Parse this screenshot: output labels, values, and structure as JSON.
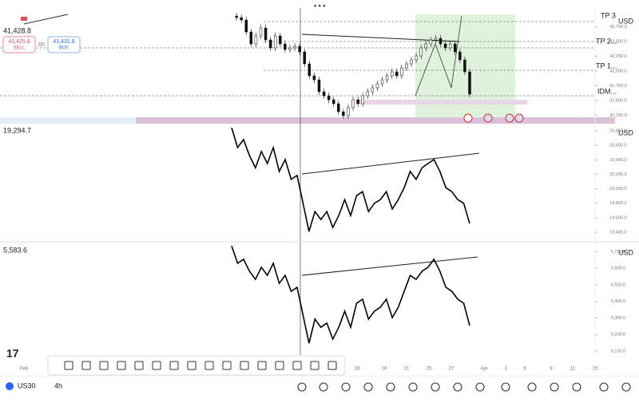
{
  "header": {
    "price": "41,428.8",
    "sell_price": "41,425.8",
    "sell": "SELL",
    "spread": "60",
    "buy_price": "41,431.8",
    "buy": "BUY"
  },
  "levels": [
    "TP 3",
    "TP 2...",
    "TP 1...",
    "IDM..."
  ],
  "panes": [
    {
      "type": "candlestick",
      "currency": "USD",
      "ylim": [
        41200,
        43000
      ],
      "yticks": [
        {
          "value": 42750,
          "label": "42,750.0"
        },
        {
          "value": 42500,
          "label": "42,500.0"
        },
        {
          "value": 42250,
          "label": "42,250.0"
        },
        {
          "value": 42000,
          "label": "42,000.0"
        },
        {
          "value": 41750,
          "label": "41,750.0"
        },
        {
          "value": 41500,
          "label": "41,500.0"
        },
        {
          "value": 41250,
          "label": "41,250.0"
        }
      ],
      "closes": [
        42932,
        42905,
        42864,
        42661,
        42458,
        42594,
        42729,
        42526,
        42391,
        42594,
        42458,
        42364,
        42391,
        42418,
        42323,
        42120,
        41917,
        41849,
        41647,
        41579,
        41511,
        41444,
        41308,
        41241,
        41376,
        41511,
        41444,
        41579,
        41647,
        41714,
        41782,
        41849,
        41917,
        41985,
        41917,
        42052,
        42120,
        42188,
        42255,
        42391,
        42458,
        42526,
        42553,
        42458,
        42391,
        42458,
        42323,
        42188,
        41985,
        41606
      ]
    },
    {
      "type": "line",
      "label": "19,294.7",
      "currency": "USD",
      "ylim": [
        19300,
        20900
      ],
      "yticks": [
        {
          "value": 20800,
          "label": "20,800.0"
        },
        {
          "value": 20600,
          "label": "20,600.0"
        },
        {
          "value": 20400,
          "label": "20,400.0"
        },
        {
          "value": 20200,
          "label": "20,200.0"
        },
        {
          "value": 20000,
          "label": "20,000.0"
        },
        {
          "value": 19800,
          "label": "19,800.0"
        },
        {
          "value": 19600,
          "label": "19,600.0"
        },
        {
          "value": 19400,
          "label": "19,400.0"
        }
      ],
      "values": [
        20845,
        20570,
        20680,
        20460,
        20290,
        20515,
        20350,
        20570,
        20240,
        20405,
        20130,
        20185,
        19800,
        19410,
        19685,
        19575,
        19685,
        19465,
        19630,
        19850,
        19630,
        19905,
        19960,
        19685,
        19800,
        19850,
        19960,
        19720,
        19850,
        20015,
        20240,
        20130,
        20290,
        20350,
        20405,
        20240,
        20015,
        19960,
        19850,
        19800,
        19520
      ]
    },
    {
      "type": "line",
      "label": "5,583.6",
      "currency": "USD",
      "ylim": [
        5100,
        5750
      ],
      "yticks": [
        {
          "value": 5700,
          "label": "5,700.0"
        },
        {
          "value": 5600,
          "label": "5,600.0"
        },
        {
          "value": 5500,
          "label": "5,500.0"
        },
        {
          "value": 5400,
          "label": "5,400.0"
        },
        {
          "value": 5300,
          "label": "5,300.0"
        },
        {
          "value": 5200,
          "label": "5,200.0"
        },
        {
          "value": 5100,
          "label": "5,100.0"
        }
      ],
      "values": [
        5735,
        5630,
        5654,
        5582,
        5533,
        5606,
        5557,
        5630,
        5509,
        5557,
        5461,
        5485,
        5317,
        5148,
        5293,
        5244,
        5269,
        5172,
        5244,
        5341,
        5244,
        5389,
        5413,
        5293,
        5341,
        5365,
        5413,
        5302,
        5365,
        5461,
        5557,
        5533,
        5582,
        5606,
        5654,
        5582,
        5485,
        5461,
        5413,
        5389,
        5254
      ]
    }
  ],
  "x_labels": [
    "Feb",
    "18",
    "19",
    "21",
    "25",
    "27",
    "Apr",
    "3",
    "6",
    "9",
    "11",
    "15"
  ],
  "footer": {
    "symbol": "US30",
    "interval": "4h"
  }
}
